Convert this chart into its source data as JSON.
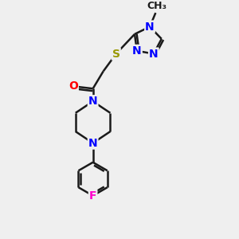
{
  "background_color": "#efefef",
  "bond_color": "#1a1a1a",
  "bond_width": 1.8,
  "atom_colors": {
    "N": "#0000ff",
    "O": "#ff0000",
    "S": "#999900",
    "F": "#ff00cc",
    "C": "#1a1a1a"
  },
  "font_size": 10,
  "figsize": [
    3.0,
    3.0
  ],
  "dpi": 100
}
